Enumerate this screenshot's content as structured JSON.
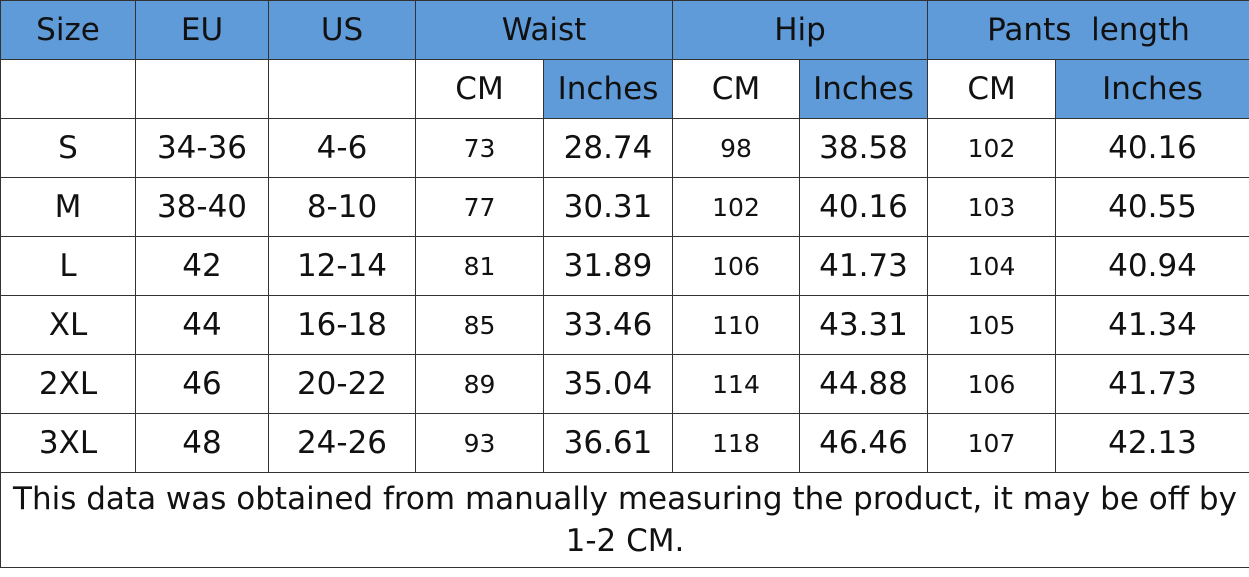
{
  "table": {
    "header": [
      "Size",
      "EU",
      "US",
      "Waist",
      "Hip",
      "Pants  length"
    ],
    "units": [
      "CM",
      "Inches",
      "CM",
      "Inches",
      "CM",
      "Inches"
    ],
    "rows": [
      [
        "S",
        "34-36",
        "4-6",
        "73",
        "28.74",
        "98",
        "38.58",
        "102",
        "40.16"
      ],
      [
        "M",
        "38-40",
        "8-10",
        "77",
        "30.31",
        "102",
        "40.16",
        "103",
        "40.55"
      ],
      [
        "L",
        "42",
        "12-14",
        "81",
        "31.89",
        "106",
        "41.73",
        "104",
        "40.94"
      ],
      [
        "XL",
        "44",
        "16-18",
        "85",
        "33.46",
        "110",
        "43.31",
        "105",
        "41.34"
      ],
      [
        "2XL",
        "46",
        "20-22",
        "89",
        "35.04",
        "114",
        "44.88",
        "106",
        "41.73"
      ],
      [
        "3XL",
        "48",
        "24-26",
        "93",
        "36.61",
        "118",
        "46.46",
        "107",
        "42.13"
      ]
    ],
    "note": "This data was obtained from manually measuring the product, it may be off by 1-2 CM."
  }
}
